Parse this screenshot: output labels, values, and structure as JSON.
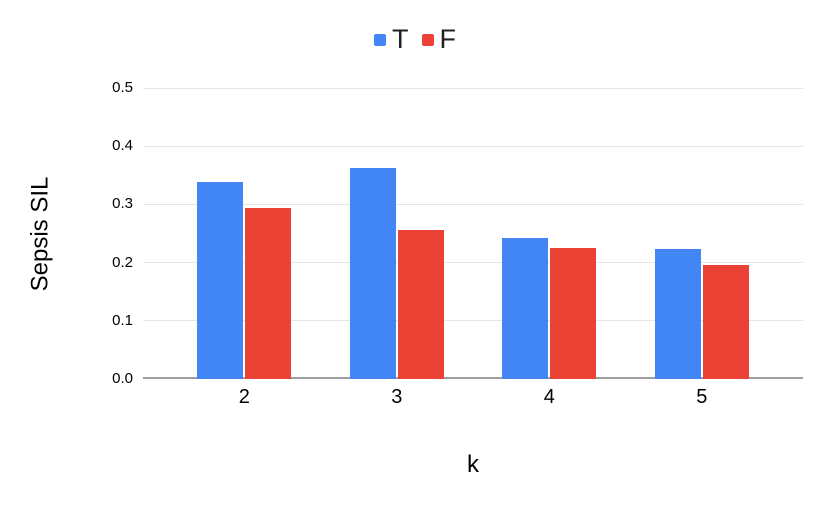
{
  "chart_data": {
    "type": "bar",
    "title": "",
    "categories": [
      "2",
      "3",
      "4",
      "5"
    ],
    "series": [
      {
        "name": "T",
        "color": "#4285F4",
        "values": [
          0.338,
          0.362,
          0.242,
          0.224
        ]
      },
      {
        "name": "F",
        "color": "#EA4335",
        "values": [
          0.293,
          0.256,
          0.225,
          0.196
        ]
      }
    ],
    "xlabel": "k",
    "ylabel": "Sepsis SIL",
    "ylim": [
      0,
      0.5
    ],
    "yticks": [
      0,
      0.1,
      0.2,
      0.3,
      0.4,
      0.5
    ],
    "ytick_labels": [
      "0.0",
      "0.1",
      "0.2",
      "0.3",
      "0.4",
      "0.5"
    ],
    "grid": true,
    "legend_position": "top"
  },
  "colors": {
    "background": "#ffffff",
    "gridline": "#e6e6e6",
    "axis_line": "#9e9e9e",
    "text": "#000000",
    "series_t": "#4285F4",
    "series_f": "#EA4335"
  }
}
